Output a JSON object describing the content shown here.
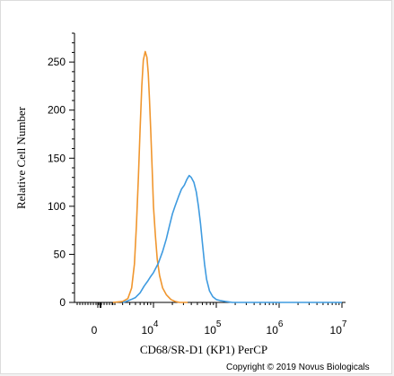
{
  "chart_data": {
    "type": "line",
    "xlabel": "CD68/SR-D1 (KP1) PerCP",
    "ylabel": "Relative Cell Number",
    "x_scale": "logicle",
    "ylim": [
      0,
      280
    ],
    "y_ticks": [
      0,
      50,
      100,
      150,
      200,
      250
    ],
    "x_ticks": [
      {
        "label": "0",
        "base": "0",
        "exp": ""
      },
      {
        "label": "10^4",
        "base": "10",
        "exp": "4"
      },
      {
        "label": "10^5",
        "base": "10",
        "exp": "5"
      },
      {
        "label": "10^6",
        "base": "10",
        "exp": "6"
      },
      {
        "label": "10^7",
        "base": "10",
        "exp": "7"
      }
    ],
    "grid": false,
    "series": [
      {
        "color": "#f0962e",
        "points": [
          [
            2000,
            0
          ],
          [
            3000,
            1
          ],
          [
            3700,
            4
          ],
          [
            4300,
            15
          ],
          [
            4800,
            40
          ],
          [
            5200,
            80
          ],
          [
            5600,
            130
          ],
          [
            6000,
            180
          ],
          [
            6400,
            225
          ],
          [
            6800,
            252
          ],
          [
            7300,
            261
          ],
          [
            7800,
            255
          ],
          [
            8200,
            238
          ],
          [
            8600,
            210
          ],
          [
            9000,
            180
          ],
          [
            9500,
            140
          ],
          [
            10000,
            100
          ],
          [
            10700,
            70
          ],
          [
            11500,
            45
          ],
          [
            12500,
            28
          ],
          [
            14000,
            15
          ],
          [
            16000,
            8
          ],
          [
            19000,
            3
          ],
          [
            22000,
            1
          ],
          [
            26000,
            0
          ],
          [
            35000,
            0
          ]
        ]
      },
      {
        "color": "#3f9be0",
        "points": [
          [
            3000,
            0
          ],
          [
            3500,
            1
          ],
          [
            4200,
            3
          ],
          [
            5000,
            5
          ],
          [
            6000,
            10
          ],
          [
            7000,
            17
          ],
          [
            8000,
            22
          ],
          [
            9000,
            27
          ],
          [
            10000,
            31
          ],
          [
            12000,
            41
          ],
          [
            14000,
            53
          ],
          [
            16000,
            66
          ],
          [
            18000,
            80
          ],
          [
            20000,
            92
          ],
          [
            22000,
            100
          ],
          [
            25000,
            110
          ],
          [
            28000,
            118
          ],
          [
            31000,
            122
          ],
          [
            34000,
            128
          ],
          [
            37000,
            132
          ],
          [
            40000,
            130
          ],
          [
            44000,
            125
          ],
          [
            48000,
            115
          ],
          [
            52000,
            100
          ],
          [
            56000,
            82
          ],
          [
            60000,
            62
          ],
          [
            65000,
            40
          ],
          [
            70000,
            24
          ],
          [
            78000,
            12
          ],
          [
            88000,
            6
          ],
          [
            100000,
            3
          ],
          [
            115000,
            2
          ],
          [
            140000,
            1
          ],
          [
            180000,
            0
          ],
          [
            10000000,
            0
          ]
        ]
      }
    ]
  },
  "copyright": "Copyright © 2019 Novus Biologicals"
}
